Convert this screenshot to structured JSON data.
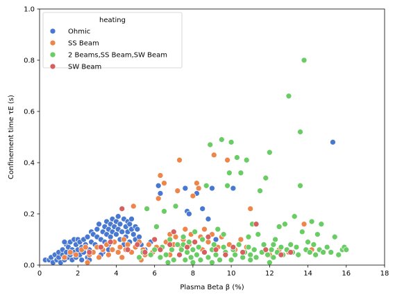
{
  "chart_data": {
    "type": "scatter",
    "title": "",
    "xlabel": "Plasma Beta β (%)",
    "ylabel": "Confinement time τE (s)",
    "xlim": [
      0,
      18
    ],
    "ylim": [
      0,
      1.0
    ],
    "xticks": [
      "0",
      "2",
      "4",
      "6",
      "8",
      "10",
      "12",
      "14",
      "16",
      "18"
    ],
    "yticks": [
      "0.0",
      "0.2",
      "0.4",
      "0.6",
      "0.8",
      "1.0"
    ],
    "grid": false,
    "legend": {
      "title": "heating",
      "placement": "top-left"
    },
    "series": [
      {
        "name": "Ohmic",
        "color": "#4878d0",
        "points": [
          [
            0.3,
            0.02
          ],
          [
            0.5,
            0.02
          ],
          [
            0.6,
            0.03
          ],
          [
            0.7,
            0.01
          ],
          [
            0.8,
            0.04
          ],
          [
            0.9,
            0.02
          ],
          [
            1.0,
            0.03
          ],
          [
            1.0,
            0.05
          ],
          [
            1.1,
            0.01
          ],
          [
            1.2,
            0.04
          ],
          [
            1.2,
            0.06
          ],
          [
            1.3,
            0.02
          ],
          [
            1.4,
            0.05
          ],
          [
            1.4,
            0.08
          ],
          [
            1.5,
            0.03
          ],
          [
            1.5,
            0.07
          ],
          [
            1.6,
            0.04
          ],
          [
            1.6,
            0.09
          ],
          [
            1.7,
            0.02
          ],
          [
            1.7,
            0.06
          ],
          [
            1.8,
            0.05
          ],
          [
            1.8,
            0.1
          ],
          [
            1.9,
            0.03
          ],
          [
            1.9,
            0.08
          ],
          [
            2.0,
            0.06
          ],
          [
            2.0,
            0.1
          ],
          [
            2.1,
            0.04
          ],
          [
            2.1,
            0.09
          ],
          [
            2.2,
            0.07
          ],
          [
            2.2,
            0.02
          ],
          [
            2.3,
            0.05
          ],
          [
            2.3,
            0.1
          ],
          [
            2.4,
            0.08
          ],
          [
            2.5,
            0.03
          ],
          [
            2.5,
            0.11
          ],
          [
            2.6,
            0.06
          ],
          [
            2.7,
            0.09
          ],
          [
            2.7,
            0.13
          ],
          [
            2.8,
            0.05
          ],
          [
            2.8,
            0.12
          ],
          [
            2.9,
            0.08
          ],
          [
            3.0,
            0.11
          ],
          [
            3.0,
            0.14
          ],
          [
            3.1,
            0.07
          ],
          [
            3.1,
            0.16
          ],
          [
            3.2,
            0.1
          ],
          [
            3.3,
            0.13
          ],
          [
            3.3,
            0.05
          ],
          [
            3.4,
            0.15
          ],
          [
            3.4,
            0.09
          ],
          [
            3.5,
            0.17
          ],
          [
            3.5,
            0.12
          ],
          [
            3.6,
            0.08
          ],
          [
            3.6,
            0.14
          ],
          [
            3.7,
            0.16
          ],
          [
            3.7,
            0.11
          ],
          [
            3.8,
            0.13
          ],
          [
            3.8,
            0.18
          ],
          [
            3.9,
            0.09
          ],
          [
            3.9,
            0.15
          ],
          [
            4.0,
            0.12
          ],
          [
            4.0,
            0.17
          ],
          [
            4.1,
            0.14
          ],
          [
            4.1,
            0.19
          ],
          [
            4.2,
            0.1
          ],
          [
            4.2,
            0.16
          ],
          [
            4.3,
            0.13
          ],
          [
            4.4,
            0.18
          ],
          [
            4.4,
            0.08
          ],
          [
            4.5,
            0.15
          ],
          [
            4.5,
            0.11
          ],
          [
            4.6,
            0.17
          ],
          [
            4.6,
            0.13
          ],
          [
            4.7,
            0.09
          ],
          [
            4.7,
            0.16
          ],
          [
            4.8,
            0.14
          ],
          [
            4.8,
            0.18
          ],
          [
            4.9,
            0.12
          ],
          [
            5.0,
            0.15
          ],
          [
            5.0,
            0.1
          ],
          [
            5.1,
            0.14
          ],
          [
            5.2,
            0.11
          ],
          [
            5.3,
            0.08
          ],
          [
            5.5,
            0.06
          ],
          [
            5.8,
            0.09
          ],
          [
            6.2,
            0.31
          ],
          [
            6.3,
            0.28
          ],
          [
            7.6,
            0.3
          ],
          [
            7.7,
            0.21
          ],
          [
            7.8,
            0.2
          ],
          [
            8.2,
            0.28
          ],
          [
            8.5,
            0.22
          ],
          [
            8.8,
            0.18
          ],
          [
            9.0,
            0.3
          ],
          [
            9.2,
            0.1
          ],
          [
            10.1,
            0.3
          ],
          [
            15.3,
            0.48
          ],
          [
            3.2,
            0.04
          ],
          [
            2.6,
            0.02
          ],
          [
            1.3,
            0.09
          ],
          [
            2.4,
            0.07
          ],
          [
            3.6,
            0.06
          ]
        ]
      },
      {
        "name": "SS Beam",
        "color": "#ee854a",
        "points": [
          [
            1.3,
            0.03
          ],
          [
            1.6,
            0.05
          ],
          [
            1.9,
            0.04
          ],
          [
            2.2,
            0.06
          ],
          [
            2.4,
            0.07
          ],
          [
            2.5,
            0.01
          ],
          [
            2.6,
            0.04
          ],
          [
            2.8,
            0.05
          ],
          [
            3.0,
            0.07
          ],
          [
            3.1,
            0.03
          ],
          [
            3.3,
            0.06
          ],
          [
            3.5,
            0.08
          ],
          [
            3.6,
            0.04
          ],
          [
            3.8,
            0.06
          ],
          [
            3.9,
            0.09
          ],
          [
            4.1,
            0.05
          ],
          [
            4.2,
            0.07
          ],
          [
            4.3,
            0.03
          ],
          [
            4.4,
            0.1
          ],
          [
            4.5,
            0.06
          ],
          [
            4.6,
            0.08
          ],
          [
            4.8,
            0.05
          ],
          [
            4.9,
            0.23
          ],
          [
            5.0,
            0.07
          ],
          [
            5.2,
            0.09
          ],
          [
            5.4,
            0.06
          ],
          [
            5.5,
            0.04
          ],
          [
            5.7,
            0.08
          ],
          [
            5.9,
            0.05
          ],
          [
            6.0,
            0.1
          ],
          [
            6.1,
            0.07
          ],
          [
            6.2,
            0.26
          ],
          [
            6.3,
            0.35
          ],
          [
            6.5,
            0.32
          ],
          [
            6.6,
            0.09
          ],
          [
            6.8,
            0.12
          ],
          [
            7.0,
            0.08
          ],
          [
            7.1,
            0.11
          ],
          [
            7.2,
            0.29
          ],
          [
            7.3,
            0.41
          ],
          [
            7.4,
            0.07
          ],
          [
            7.5,
            0.1
          ],
          [
            7.6,
            0.14
          ],
          [
            7.8,
            0.08
          ],
          [
            7.9,
            0.12
          ],
          [
            8.0,
            0.27
          ],
          [
            8.2,
            0.32
          ],
          [
            8.3,
            0.3
          ],
          [
            8.4,
            0.11
          ],
          [
            8.5,
            0.06
          ],
          [
            8.6,
            0.14
          ],
          [
            8.8,
            0.09
          ],
          [
            9.0,
            0.12
          ],
          [
            9.1,
            0.43
          ],
          [
            9.3,
            0.07
          ],
          [
            9.5,
            0.11
          ],
          [
            9.8,
            0.41
          ],
          [
            9.9,
            0.08
          ],
          [
            10.2,
            0.06
          ],
          [
            10.5,
            0.1
          ],
          [
            10.8,
            0.07
          ],
          [
            11.0,
            0.22
          ],
          [
            11.2,
            0.06
          ],
          [
            11.6,
            0.05
          ],
          [
            12.0,
            0.04
          ],
          [
            12.5,
            0.06
          ],
          [
            13.0,
            0.05
          ],
          [
            13.8,
            0.16
          ],
          [
            14.2,
            0.06
          ],
          [
            6.8,
            0.04
          ],
          [
            7.7,
            0.05
          ],
          [
            5.3,
            0.02
          ]
        ]
      },
      {
        "name": "2 Beams,SS Beam,SW Beam",
        "color": "#6acc64",
        "points": [
          [
            5.2,
            0.03
          ],
          [
            5.4,
            0.05
          ],
          [
            5.6,
            0.22
          ],
          [
            5.8,
            0.04
          ],
          [
            6.0,
            0.06
          ],
          [
            6.1,
            0.15
          ],
          [
            6.3,
            0.03
          ],
          [
            6.4,
            0.07
          ],
          [
            6.5,
            0.21
          ],
          [
            6.6,
            0.04
          ],
          [
            6.8,
            0.1
          ],
          [
            6.9,
            0.06
          ],
          [
            7.0,
            0.02
          ],
          [
            7.1,
            0.23
          ],
          [
            7.2,
            0.08
          ],
          [
            7.3,
            0.04
          ],
          [
            7.4,
            0.06
          ],
          [
            7.5,
            0.11
          ],
          [
            7.6,
            0.02
          ],
          [
            7.7,
            0.05
          ],
          [
            7.8,
            0.09
          ],
          [
            7.9,
            0.03
          ],
          [
            8.0,
            0.06
          ],
          [
            8.1,
            0.13
          ],
          [
            8.2,
            0.04
          ],
          [
            8.3,
            0.07
          ],
          [
            8.4,
            0.02
          ],
          [
            8.5,
            0.1
          ],
          [
            8.6,
            0.05
          ],
          [
            8.7,
            0.31
          ],
          [
            8.8,
            0.03
          ],
          [
            8.9,
            0.47
          ],
          [
            9.0,
            0.06
          ],
          [
            9.1,
            0.08
          ],
          [
            9.2,
            0.04
          ],
          [
            9.3,
            0.14
          ],
          [
            9.4,
            0.02
          ],
          [
            9.5,
            0.49
          ],
          [
            9.6,
            0.07
          ],
          [
            9.7,
            0.05
          ],
          [
            9.8,
            0.31
          ],
          [
            9.9,
            0.36
          ],
          [
            10.0,
            0.48
          ],
          [
            10.1,
            0.06
          ],
          [
            10.2,
            0.04
          ],
          [
            10.3,
            0.42
          ],
          [
            10.4,
            0.08
          ],
          [
            10.5,
            0.36
          ],
          [
            10.6,
            0.03
          ],
          [
            10.7,
            0.05
          ],
          [
            10.8,
            0.41
          ],
          [
            10.9,
            0.07
          ],
          [
            11.0,
            0.04
          ],
          [
            11.1,
            0.16
          ],
          [
            11.2,
            0.06
          ],
          [
            11.3,
            0.03
          ],
          [
            11.4,
            0.12
          ],
          [
            11.5,
            0.29
          ],
          [
            11.6,
            0.05
          ],
          [
            11.7,
            0.08
          ],
          [
            11.8,
            0.34
          ],
          [
            11.9,
            0.04
          ],
          [
            12.0,
            0.44
          ],
          [
            12.1,
            0.06
          ],
          [
            12.2,
            0.03
          ],
          [
            12.3,
            0.1
          ],
          [
            12.4,
            0.05
          ],
          [
            12.5,
            0.15
          ],
          [
            12.6,
            0.07
          ],
          [
            12.7,
            0.04
          ],
          [
            12.8,
            0.16
          ],
          [
            12.9,
            0.06
          ],
          [
            13.0,
            0.66
          ],
          [
            13.1,
            0.08
          ],
          [
            13.2,
            0.05
          ],
          [
            13.3,
            0.19
          ],
          [
            13.4,
            0.07
          ],
          [
            13.5,
            0.04
          ],
          [
            13.6,
            0.52
          ],
          [
            13.6,
            0.31
          ],
          [
            13.7,
            0.13
          ],
          [
            13.8,
            0.8
          ],
          [
            13.9,
            0.06
          ],
          [
            14.0,
            0.09
          ],
          [
            14.1,
            0.05
          ],
          [
            14.2,
            0.17
          ],
          [
            14.3,
            0.08
          ],
          [
            14.4,
            0.04
          ],
          [
            14.5,
            0.12
          ],
          [
            14.6,
            0.06
          ],
          [
            14.7,
            0.16
          ],
          [
            14.8,
            0.05
          ],
          [
            15.0,
            0.07
          ],
          [
            15.2,
            0.05
          ],
          [
            15.4,
            0.11
          ],
          [
            15.6,
            0.04
          ],
          [
            15.8,
            0.06
          ],
          [
            15.9,
            0.07
          ],
          [
            16.0,
            0.06
          ],
          [
            8.0,
            0.01
          ],
          [
            9.0,
            0.01
          ],
          [
            10.0,
            0.02
          ],
          [
            11.0,
            0.02
          ],
          [
            12.0,
            0.01
          ],
          [
            6.7,
            0.01
          ],
          [
            7.5,
            0.08
          ],
          [
            9.6,
            0.12
          ],
          [
            10.9,
            0.11
          ],
          [
            12.2,
            0.08
          ]
        ]
      },
      {
        "name": "SW Beam",
        "color": "#d65f5f",
        "points": [
          [
            2.6,
            0.05
          ],
          [
            3.2,
            0.07
          ],
          [
            3.7,
            0.09
          ],
          [
            4.3,
            0.22
          ],
          [
            4.6,
            0.06
          ],
          [
            5.1,
            0.08
          ],
          [
            5.5,
            0.05
          ],
          [
            6.0,
            0.1
          ],
          [
            6.3,
            0.06
          ],
          [
            6.8,
            0.08
          ],
          [
            7.3,
            0.04
          ],
          [
            7.7,
            0.07
          ],
          [
            8.1,
            0.09
          ],
          [
            8.6,
            0.05
          ],
          [
            9.2,
            0.06
          ],
          [
            9.7,
            0.04
          ],
          [
            10.1,
            0.07
          ],
          [
            10.6,
            0.05
          ],
          [
            11.3,
            0.16
          ],
          [
            11.8,
            0.06
          ],
          [
            12.6,
            0.04
          ],
          [
            13.1,
            0.05
          ],
          [
            7.0,
            0.13
          ],
          [
            8.8,
            0.11
          ]
        ]
      }
    ]
  }
}
